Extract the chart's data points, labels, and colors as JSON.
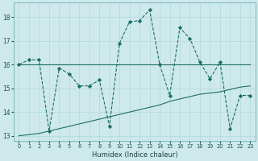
{
  "xlabel": "Humidex (Indice chaleur)",
  "background_color": "#cee9eb",
  "grid_color": "#b0d8da",
  "line_color": "#1a6e64",
  "xlim": [
    -0.5,
    23.5
  ],
  "ylim": [
    12.8,
    18.6
  ],
  "yticks": [
    13,
    14,
    15,
    16,
    17,
    18
  ],
  "xticks": [
    0,
    1,
    2,
    3,
    4,
    5,
    6,
    7,
    8,
    9,
    10,
    11,
    12,
    13,
    14,
    15,
    16,
    17,
    18,
    19,
    20,
    21,
    22,
    23
  ],
  "line_flat": {
    "x": [
      0,
      1,
      2,
      3,
      4,
      5,
      6,
      7,
      8,
      9,
      10,
      11,
      12,
      13,
      14,
      15,
      16,
      17,
      18,
      19,
      20,
      21,
      22,
      23
    ],
    "y": [
      16.0,
      16.0,
      16.0,
      16.0,
      16.0,
      16.0,
      16.0,
      16.0,
      16.0,
      16.0,
      16.0,
      16.0,
      16.0,
      16.0,
      16.0,
      16.0,
      16.0,
      16.0,
      16.0,
      16.0,
      16.0,
      16.0,
      16.0,
      16.0
    ]
  },
  "line_rise": {
    "x": [
      0,
      1,
      2,
      3,
      4,
      5,
      6,
      7,
      8,
      9,
      10,
      11,
      12,
      13,
      14,
      15,
      16,
      17,
      18,
      19,
      20,
      21,
      22,
      23
    ],
    "y": [
      13.0,
      13.05,
      13.1,
      13.2,
      13.3,
      13.4,
      13.5,
      13.6,
      13.7,
      13.8,
      13.9,
      14.0,
      14.1,
      14.2,
      14.3,
      14.45,
      14.55,
      14.65,
      14.75,
      14.8,
      14.85,
      14.95,
      15.05,
      15.1
    ]
  },
  "line_volatile": {
    "x": [
      0,
      1,
      2,
      3,
      4,
      5,
      6,
      7,
      8,
      9,
      10,
      11,
      12,
      13,
      14,
      15,
      16,
      17,
      18,
      19,
      20,
      21,
      22,
      23
    ],
    "y": [
      16.0,
      16.2,
      16.2,
      13.2,
      15.85,
      15.6,
      15.1,
      15.1,
      15.35,
      13.4,
      16.9,
      17.8,
      17.85,
      18.3,
      16.0,
      14.7,
      17.55,
      17.1,
      16.1,
      15.4,
      16.1,
      13.3,
      14.7,
      14.7
    ]
  }
}
